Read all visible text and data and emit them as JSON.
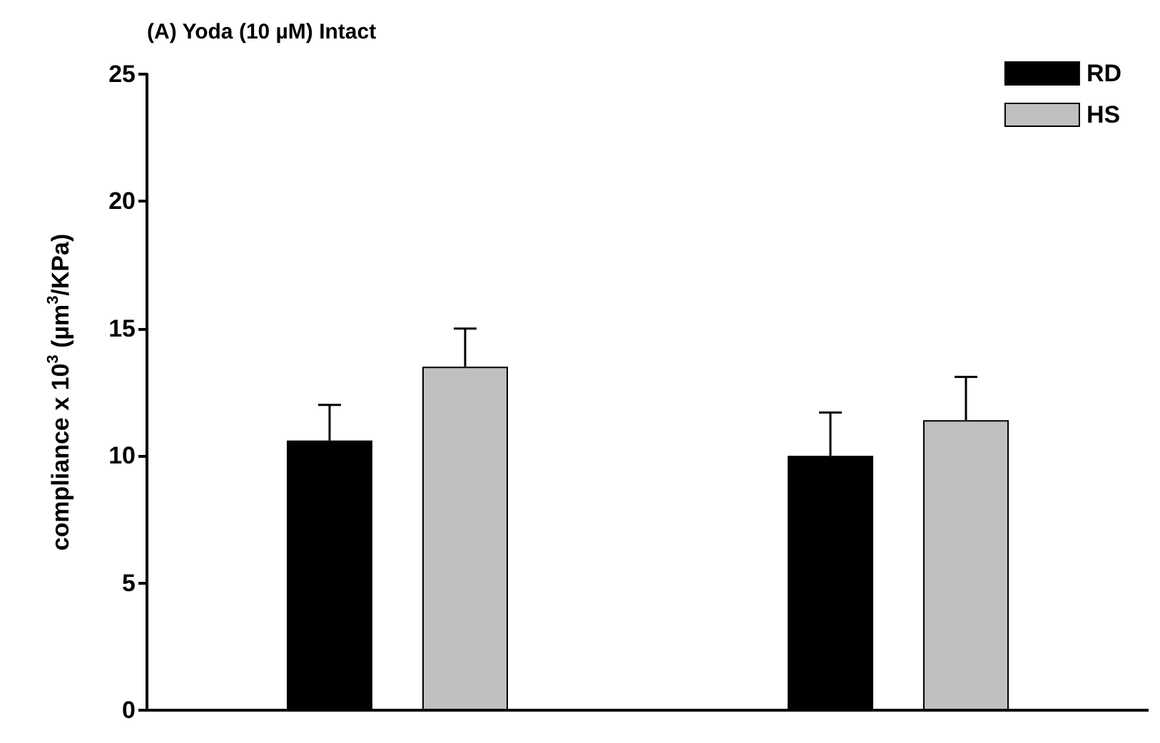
{
  "chart_data": {
    "type": "bar",
    "title": "(A) Yoda (10 µM) Intact",
    "ylabel": "compliance x 10$^{3}$ (µm$^{3}$/KPa)",
    "categories": [
      null,
      null
    ],
    "series": [
      {
        "name": "RD",
        "color": "#000000",
        "values": [
          10.6,
          10.0
        ],
        "errors": [
          [
            10.6,
            12.0
          ],
          [
            10.0,
            11.7
          ]
        ]
      },
      {
        "name": "HS",
        "color": "#c0c0c0",
        "values": [
          13.5,
          11.4
        ],
        "errors": [
          [
            13.5,
            15.0
          ],
          [
            11.4,
            13.1
          ]
        ]
      }
    ],
    "ylim": [
      0,
      25
    ],
    "yticks": [
      0,
      5,
      10,
      15,
      20,
      25
    ],
    "grid": false,
    "legend": "top right"
  }
}
